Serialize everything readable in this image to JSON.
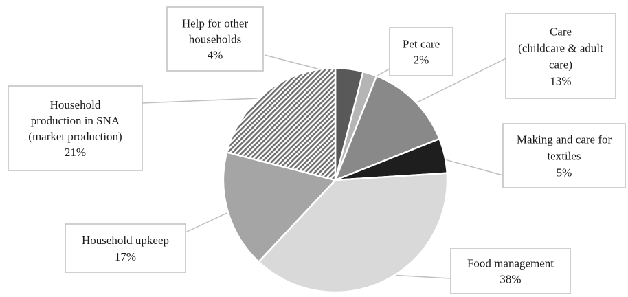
{
  "chart_data": {
    "type": "pie",
    "title": "",
    "start_angle_deg": 0,
    "direction": "clockwise",
    "slices": [
      {
        "label": "Help for other households",
        "value": 4,
        "value_label": "4%",
        "color": "#595959",
        "pattern": "none"
      },
      {
        "label": "Pet care",
        "value": 2,
        "value_label": "2%",
        "color": "#b5b5b5",
        "pattern": "none"
      },
      {
        "label": "Care (childcare & adult care)",
        "value": 13,
        "value_label": "13%",
        "color": "#898989",
        "pattern": "none"
      },
      {
        "label": "Making and care for textiles",
        "value": 5,
        "value_label": "5%",
        "color": "#1e1e1e",
        "pattern": "none"
      },
      {
        "label": "Food management",
        "value": 38,
        "value_label": "38%",
        "color": "#d9d9d9",
        "pattern": "none"
      },
      {
        "label": "Household upkeep",
        "value": 17,
        "value_label": "17%",
        "color": "#a5a5a5",
        "pattern": "none"
      },
      {
        "label": "Household production in SNA (market production)",
        "value": 21,
        "value_label": "21%",
        "color": "#7f7f7f",
        "pattern": "diagonal-hatch"
      }
    ],
    "labels": [
      {
        "lines": [
          "Help for other",
          "households",
          "4%"
        ]
      },
      {
        "lines": [
          "Pet care",
          "2%"
        ]
      },
      {
        "lines": [
          "Care",
          "(childcare & adult",
          "care)",
          "13%"
        ]
      },
      {
        "lines": [
          "Making and care for",
          "textiles",
          "5%"
        ]
      },
      {
        "lines": [
          "Food management",
          "38%"
        ]
      },
      {
        "lines": [
          "Household upkeep",
          "17%"
        ]
      },
      {
        "lines": [
          "Household",
          "production in SNA",
          "(market production)",
          "21%"
        ]
      }
    ]
  }
}
